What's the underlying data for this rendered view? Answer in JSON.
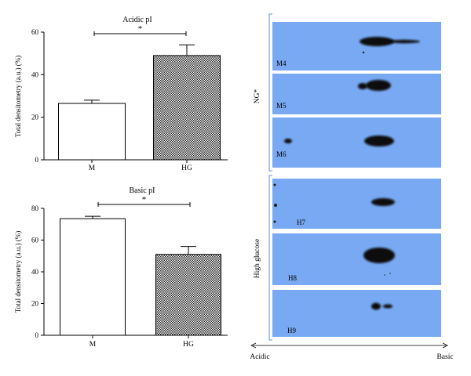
{
  "chart_data": [
    {
      "type": "bar",
      "title": "Acidic pI",
      "ylabel": "Total densitometry (a.u.) (%)",
      "categories": [
        "M",
        "HG"
      ],
      "values": [
        26.5,
        49.0
      ],
      "errors": [
        1.5,
        5.0
      ],
      "ylim": [
        0,
        60
      ],
      "yticks": [
        0,
        20,
        40,
        60
      ],
      "significance": "*",
      "bar_fills": [
        "white",
        "checkered"
      ]
    },
    {
      "type": "bar",
      "title": "Basic pI",
      "ylabel": "Total densitometry (a.u.) (%)",
      "categories": [
        "M",
        "HG"
      ],
      "values": [
        73.5,
        51.0
      ],
      "errors": [
        1.5,
        5.0
      ],
      "ylim": [
        0,
        80
      ],
      "yticks": [
        0,
        20,
        40,
        60,
        80
      ],
      "significance": "*",
      "bar_fills": [
        "white",
        "checkered"
      ]
    }
  ],
  "blots": {
    "groups": [
      {
        "label": "NG*",
        "panels": [
          "M4",
          "M5",
          "M6"
        ]
      },
      {
        "label": "High glucose",
        "panels": [
          "H7",
          "H8",
          "H9"
        ]
      }
    ],
    "axis_left": "Acidic",
    "axis_right": "Basic",
    "panel_color": "#78a9f2",
    "spot_color": "#0a0a0a"
  }
}
